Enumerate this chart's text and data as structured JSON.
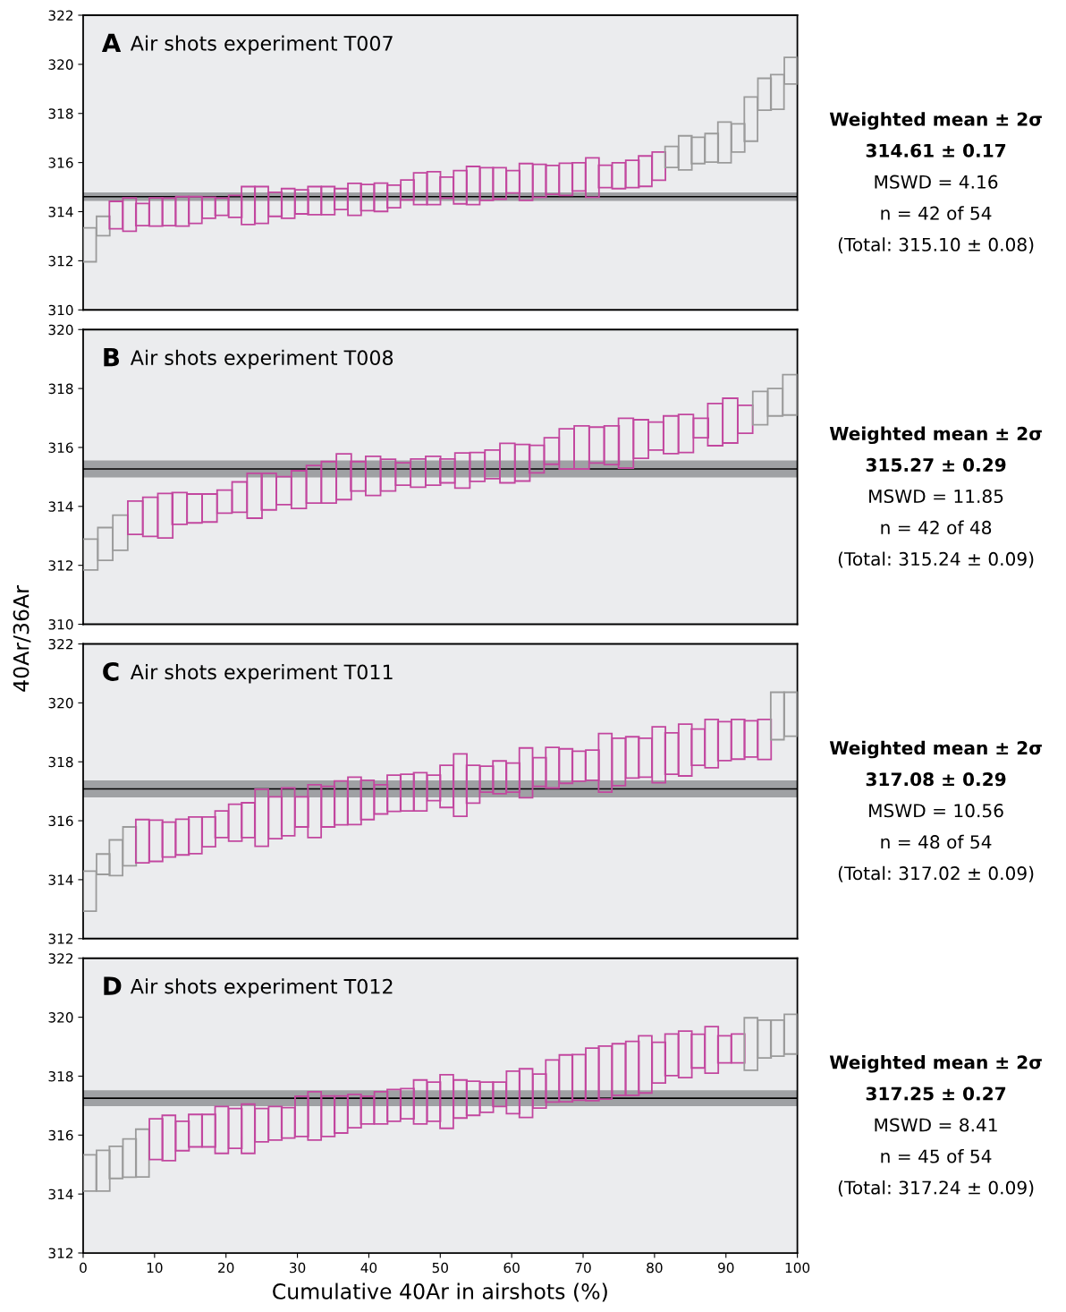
{
  "chart_data": [
    {
      "type": "bar",
      "title": "Air shots experiment T007",
      "annotations": [
        "A",
        "Weighted mean ± 2σ",
        "314.61 ± 0.17",
        "MSWD = 4.16",
        "n = 42 of 54",
        "(Total: 315.10 ± 0.08)"
      ],
      "xlim": [
        0,
        100
      ],
      "ylim": [
        310,
        322
      ],
      "yticks": [
        310,
        312,
        314,
        316,
        318,
        320,
        322
      ],
      "tick_labels": "y",
      "x": [
        0.9,
        2.8,
        4.6,
        6.5,
        8.3,
        10.2,
        12.0,
        13.9,
        15.7,
        17.6,
        19.4,
        21.3,
        23.1,
        25.0,
        26.9,
        28.7,
        30.6,
        32.4,
        34.3,
        36.1,
        38.0,
        39.8,
        41.7,
        43.5,
        45.4,
        47.2,
        49.1,
        50.9,
        52.8,
        54.6,
        56.5,
        58.3,
        60.2,
        62.0,
        63.9,
        65.7,
        67.6,
        69.4,
        71.3,
        73.1,
        75.0,
        76.9,
        78.7,
        80.6,
        82.4,
        84.3,
        86.1,
        88.0,
        89.8,
        91.7,
        93.5,
        95.4,
        97.2,
        99.1
      ],
      "base": [
        311.96,
        313.02,
        313.3,
        313.2,
        313.43,
        313.41,
        313.43,
        313.41,
        313.52,
        313.73,
        313.85,
        313.77,
        313.48,
        313.52,
        313.81,
        313.73,
        313.91,
        313.88,
        313.88,
        314.09,
        313.85,
        314.04,
        314.01,
        314.16,
        314.48,
        314.29,
        314.29,
        314.55,
        314.32,
        314.29,
        314.46,
        314.51,
        314.76,
        314.46,
        314.59,
        314.71,
        314.66,
        314.84,
        314.59,
        314.98,
        314.94,
        314.98,
        315.03,
        315.28,
        315.8,
        315.7,
        315.96,
        316.02,
        315.99,
        316.43,
        316.87,
        318.13,
        318.17,
        319.2
      ],
      "values": [
        1.38,
        0.79,
        1.12,
        1.36,
        0.9,
        1.15,
        1.12,
        1.2,
        1.09,
        0.86,
        0.7,
        0.89,
        1.54,
        1.5,
        0.98,
        1.21,
        0.98,
        1.14,
        1.14,
        0.85,
        1.3,
        1.07,
        1.15,
        0.92,
        0.81,
        1.29,
        1.34,
        0.86,
        1.35,
        1.55,
        1.33,
        1.28,
        0.91,
        1.5,
        1.34,
        1.17,
        1.31,
        1.15,
        1.6,
        0.91,
        1.05,
        1.11,
        1.24,
        1.15,
        0.86,
        1.39,
        1.07,
        1.16,
        1.66,
        1.15,
        1.8,
        1.3,
        1.41,
        1.08
      ],
      "colors": [
        "#9b9b9b",
        "#9b9b9b",
        "#c2479f",
        "#c2479f",
        "#c2479f",
        "#c2479f",
        "#c2479f",
        "#c2479f",
        "#c2479f",
        "#c2479f",
        "#c2479f",
        "#c2479f",
        "#c2479f",
        "#c2479f",
        "#c2479f",
        "#c2479f",
        "#c2479f",
        "#c2479f",
        "#c2479f",
        "#c2479f",
        "#c2479f",
        "#c2479f",
        "#c2479f",
        "#c2479f",
        "#c2479f",
        "#c2479f",
        "#c2479f",
        "#c2479f",
        "#c2479f",
        "#c2479f",
        "#c2479f",
        "#c2479f",
        "#c2479f",
        "#c2479f",
        "#c2479f",
        "#c2479f",
        "#c2479f",
        "#c2479f",
        "#c2479f",
        "#c2479f",
        "#c2479f",
        "#c2479f",
        "#c2479f",
        "#c2479f",
        "#9b9b9b",
        "#9b9b9b",
        "#9b9b9b",
        "#9b9b9b",
        "#9b9b9b",
        "#9b9b9b",
        "#9b9b9b",
        "#9b9b9b",
        "#9b9b9b",
        "#9b9b9b"
      ],
      "bands": [
        {
          "axis": "y",
          "from": 314.44,
          "to": 314.78,
          "color": "#54555a"
        }
      ],
      "ref_lines": [
        {
          "axis": "y",
          "value": 314.61,
          "color": "#000000"
        }
      ]
    },
    {
      "type": "bar",
      "title": "Air shots experiment T008",
      "ylabel": "40Ar/36Ar",
      "annotations": [
        "B",
        "Weighted mean ± 2σ",
        "315.27 ± 0.29",
        "MSWD = 11.85",
        "n = 42 of 48",
        "(Total: 315.24 ± 0.09)"
      ],
      "xlim": [
        0,
        100
      ],
      "ylim": [
        310,
        320
      ],
      "yticks": [
        310,
        312,
        314,
        316,
        318,
        320
      ],
      "tick_labels": "y",
      "x": [
        1.0,
        3.1,
        5.2,
        7.3,
        9.4,
        11.5,
        13.5,
        15.6,
        17.7,
        19.8,
        21.9,
        24.0,
        26.0,
        28.1,
        30.2,
        32.3,
        34.4,
        36.5,
        38.5,
        40.6,
        42.7,
        44.8,
        46.9,
        49.0,
        51.0,
        53.1,
        55.2,
        57.3,
        59.4,
        61.5,
        63.5,
        65.6,
        67.7,
        69.8,
        71.9,
        74.0,
        76.0,
        78.1,
        80.2,
        82.3,
        84.4,
        86.5,
        88.5,
        90.6,
        92.7,
        94.8,
        96.9,
        99.0
      ],
      "base": [
        311.84,
        312.17,
        312.51,
        313.05,
        312.98,
        312.93,
        313.39,
        313.44,
        313.47,
        313.77,
        313.8,
        313.6,
        313.88,
        314.06,
        313.93,
        314.11,
        314.11,
        314.23,
        314.52,
        314.37,
        314.52,
        314.72,
        314.65,
        314.72,
        314.8,
        314.62,
        314.85,
        314.94,
        314.8,
        314.86,
        315.14,
        315.43,
        315.27,
        315.27,
        315.47,
        315.42,
        315.3,
        315.63,
        315.91,
        315.79,
        315.83,
        316.33,
        316.06,
        316.15,
        316.48,
        316.77,
        317.07,
        317.1
      ],
      "values": [
        1.05,
        1.11,
        1.19,
        1.13,
        1.33,
        1.51,
        1.08,
        0.98,
        0.95,
        0.78,
        1.03,
        1.52,
        1.24,
        0.95,
        1.28,
        1.28,
        1.41,
        1.55,
        1.0,
        1.33,
        1.08,
        0.76,
        0.96,
        0.98,
        0.81,
        1.19,
        0.98,
        0.97,
        1.34,
        1.24,
        0.93,
        0.9,
        1.36,
        1.46,
        1.22,
        1.31,
        1.69,
        1.31,
        0.95,
        1.28,
        1.29,
        0.66,
        1.43,
        1.52,
        0.95,
        1.13,
        0.93,
        1.37
      ],
      "colors": [
        "#9b9b9b",
        "#9b9b9b",
        "#9b9b9b",
        "#c2479f",
        "#c2479f",
        "#c2479f",
        "#c2479f",
        "#c2479f",
        "#c2479f",
        "#c2479f",
        "#c2479f",
        "#c2479f",
        "#c2479f",
        "#c2479f",
        "#c2479f",
        "#c2479f",
        "#c2479f",
        "#c2479f",
        "#c2479f",
        "#c2479f",
        "#c2479f",
        "#c2479f",
        "#c2479f",
        "#c2479f",
        "#c2479f",
        "#c2479f",
        "#c2479f",
        "#c2479f",
        "#c2479f",
        "#c2479f",
        "#c2479f",
        "#c2479f",
        "#c2479f",
        "#c2479f",
        "#c2479f",
        "#c2479f",
        "#c2479f",
        "#c2479f",
        "#c2479f",
        "#c2479f",
        "#c2479f",
        "#c2479f",
        "#c2479f",
        "#c2479f",
        "#c2479f",
        "#9b9b9b",
        "#9b9b9b",
        "#9b9b9b"
      ],
      "bands": [
        {
          "axis": "y",
          "from": 314.98,
          "to": 315.56,
          "color": "#54555a"
        }
      ],
      "ref_lines": [
        {
          "axis": "y",
          "value": 315.27,
          "color": "#000000"
        }
      ]
    },
    {
      "type": "bar",
      "title": "Air shots experiment T011",
      "annotations": [
        "C",
        "Weighted mean ± 2σ",
        "317.08 ± 0.29",
        "MSWD = 10.56",
        "n = 48 of 54",
        "(Total: 317.02 ± 0.09)"
      ],
      "xlim": [
        0,
        100
      ],
      "ylim": [
        312,
        322
      ],
      "yticks": [
        312,
        314,
        316,
        318,
        320,
        322
      ],
      "tick_labels": "y",
      "x": [
        0.9,
        2.8,
        4.6,
        6.5,
        8.3,
        10.2,
        12.0,
        13.9,
        15.7,
        17.6,
        19.4,
        21.3,
        23.1,
        25.0,
        26.9,
        28.7,
        30.6,
        32.4,
        34.3,
        36.1,
        38.0,
        39.8,
        41.7,
        43.5,
        45.4,
        47.2,
        49.1,
        50.9,
        52.8,
        54.6,
        56.5,
        58.3,
        60.2,
        62.0,
        63.9,
        65.7,
        67.6,
        69.4,
        71.3,
        73.1,
        75.0,
        76.9,
        78.7,
        80.6,
        82.4,
        84.3,
        86.1,
        88.0,
        89.8,
        91.7,
        93.5,
        95.4,
        97.2,
        99.1
      ],
      "base": [
        312.93,
        314.18,
        314.14,
        314.47,
        314.57,
        314.62,
        314.77,
        314.84,
        314.88,
        315.12,
        315.43,
        315.31,
        315.43,
        315.13,
        315.39,
        315.49,
        315.79,
        315.43,
        315.79,
        315.86,
        315.87,
        316.04,
        316.23,
        316.32,
        316.33,
        316.33,
        316.68,
        316.45,
        316.15,
        316.6,
        316.97,
        316.92,
        316.97,
        316.78,
        317.17,
        317.11,
        317.27,
        317.34,
        317.37,
        316.97,
        317.19,
        317.45,
        317.48,
        317.29,
        317.58,
        317.52,
        317.88,
        317.8,
        318.04,
        318.09,
        318.16,
        318.08,
        318.75,
        318.87
      ],
      "values": [
        1.36,
        0.69,
        1.21,
        1.32,
        1.47,
        1.4,
        1.18,
        1.21,
        1.25,
        1.01,
        0.9,
        1.25,
        1.18,
        1.94,
        1.42,
        1.62,
        1.02,
        1.79,
        1.38,
        1.49,
        1.61,
        1.33,
        0.99,
        1.23,
        1.25,
        1.3,
        0.87,
        1.43,
        2.12,
        1.28,
        0.88,
        1.11,
        0.99,
        1.69,
        0.97,
        1.38,
        1.17,
        1.02,
        1.03,
        1.99,
        1.61,
        1.4,
        1.32,
        1.9,
        1.4,
        1.76,
        1.23,
        1.64,
        1.32,
        1.35,
        1.23,
        1.36,
        1.61,
        1.49
      ],
      "colors": [
        "#9b9b9b",
        "#9b9b9b",
        "#9b9b9b",
        "#9b9b9b",
        "#c2479f",
        "#c2479f",
        "#c2479f",
        "#c2479f",
        "#c2479f",
        "#c2479f",
        "#c2479f",
        "#c2479f",
        "#c2479f",
        "#c2479f",
        "#c2479f",
        "#c2479f",
        "#c2479f",
        "#c2479f",
        "#c2479f",
        "#c2479f",
        "#c2479f",
        "#c2479f",
        "#c2479f",
        "#c2479f",
        "#c2479f",
        "#c2479f",
        "#c2479f",
        "#c2479f",
        "#c2479f",
        "#c2479f",
        "#c2479f",
        "#c2479f",
        "#c2479f",
        "#c2479f",
        "#c2479f",
        "#c2479f",
        "#c2479f",
        "#c2479f",
        "#c2479f",
        "#c2479f",
        "#c2479f",
        "#c2479f",
        "#c2479f",
        "#c2479f",
        "#c2479f",
        "#c2479f",
        "#c2479f",
        "#c2479f",
        "#c2479f",
        "#c2479f",
        "#c2479f",
        "#c2479f",
        "#9b9b9b",
        "#9b9b9b"
      ],
      "bands": [
        {
          "axis": "y",
          "from": 316.79,
          "to": 317.37,
          "color": "#54555a"
        }
      ],
      "ref_lines": [
        {
          "axis": "y",
          "value": 317.08,
          "color": "#000000"
        }
      ]
    },
    {
      "type": "bar",
      "title": "Air shots experiment T012",
      "xlabel": "Cumulative 40Ar in airshots (%)",
      "annotations": [
        "D",
        "Weighted mean ± 2σ",
        "317.25 ± 0.27",
        "MSWD = 8.41",
        "n = 45 of 54",
        "(Total: 317.24 ± 0.09)"
      ],
      "xlim": [
        0,
        100
      ],
      "xticks": [
        0,
        10,
        20,
        30,
        40,
        50,
        60,
        70,
        80,
        90,
        100
      ],
      "ylim": [
        312,
        322
      ],
      "yticks": [
        312,
        314,
        316,
        318,
        320,
        322
      ],
      "x": [
        0.9,
        2.8,
        4.6,
        6.5,
        8.3,
        10.2,
        12.0,
        13.9,
        15.7,
        17.6,
        19.4,
        21.3,
        23.1,
        25.0,
        26.9,
        28.7,
        30.6,
        32.4,
        34.3,
        36.1,
        38.0,
        39.8,
        41.7,
        43.5,
        45.4,
        47.2,
        49.1,
        50.9,
        52.8,
        54.6,
        56.5,
        58.3,
        60.2,
        62.0,
        63.9,
        65.7,
        67.6,
        69.4,
        71.3,
        73.1,
        75.0,
        76.9,
        78.7,
        80.6,
        82.4,
        84.3,
        86.1,
        88.0,
        89.8,
        91.7,
        93.5,
        95.4,
        97.2,
        99.1
      ],
      "base": [
        314.1,
        314.1,
        314.53,
        314.57,
        314.58,
        315.17,
        315.13,
        315.47,
        315.6,
        315.6,
        315.38,
        315.55,
        315.38,
        315.77,
        315.83,
        315.9,
        315.95,
        315.83,
        315.95,
        316.07,
        316.25,
        316.38,
        316.38,
        316.47,
        316.55,
        316.38,
        316.47,
        316.23,
        316.58,
        316.67,
        316.77,
        316.97,
        316.73,
        316.6,
        316.92,
        317.12,
        317.13,
        317.18,
        317.17,
        317.22,
        317.35,
        317.35,
        317.43,
        317.77,
        318.02,
        317.95,
        318.28,
        318.1,
        318.45,
        318.45,
        318.2,
        318.62,
        318.68,
        318.75
      ],
      "values": [
        1.23,
        1.38,
        1.09,
        1.3,
        1.62,
        1.38,
        1.54,
        1.0,
        1.1,
        1.1,
        1.59,
        1.35,
        1.67,
        1.13,
        1.14,
        1.03,
        1.37,
        1.64,
        1.38,
        1.26,
        1.13,
        0.94,
        1.09,
        1.08,
        1.03,
        1.49,
        1.33,
        1.82,
        1.29,
        1.16,
        1.03,
        0.83,
        1.44,
        1.65,
        1.15,
        1.43,
        1.59,
        1.55,
        1.78,
        1.8,
        1.75,
        1.83,
        1.94,
        1.38,
        1.41,
        1.58,
        1.14,
        1.58,
        0.92,
        0.98,
        1.78,
        1.28,
        1.22,
        1.35
      ],
      "colors": [
        "#9b9b9b",
        "#9b9b9b",
        "#9b9b9b",
        "#9b9b9b",
        "#9b9b9b",
        "#c2479f",
        "#c2479f",
        "#c2479f",
        "#c2479f",
        "#c2479f",
        "#c2479f",
        "#c2479f",
        "#c2479f",
        "#c2479f",
        "#c2479f",
        "#c2479f",
        "#c2479f",
        "#c2479f",
        "#c2479f",
        "#c2479f",
        "#c2479f",
        "#c2479f",
        "#c2479f",
        "#c2479f",
        "#c2479f",
        "#c2479f",
        "#c2479f",
        "#c2479f",
        "#c2479f",
        "#c2479f",
        "#c2479f",
        "#c2479f",
        "#c2479f",
        "#c2479f",
        "#c2479f",
        "#c2479f",
        "#c2479f",
        "#c2479f",
        "#c2479f",
        "#c2479f",
        "#c2479f",
        "#c2479f",
        "#c2479f",
        "#c2479f",
        "#c2479f",
        "#c2479f",
        "#c2479f",
        "#c2479f",
        "#c2479f",
        "#c2479f",
        "#9b9b9b",
        "#9b9b9b",
        "#9b9b9b",
        "#9b9b9b"
      ],
      "bands": [
        {
          "axis": "y",
          "from": 316.98,
          "to": 317.52,
          "color": "#54555a"
        }
      ],
      "ref_lines": [
        {
          "axis": "y",
          "value": 317.25,
          "color": "#000000"
        }
      ]
    }
  ]
}
